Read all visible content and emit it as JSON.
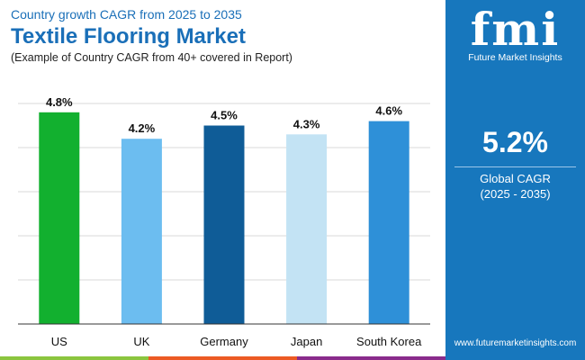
{
  "header": {
    "subtitle": "Country growth CAGR from 2025 to 2035",
    "title": "Textile Flooring Market",
    "note": "(Example of Country CAGR from 40+ covered in Report)"
  },
  "panel": {
    "logo_text": "fmi",
    "brand": "Future Market Insights",
    "cagr": "5.2%",
    "cagr_label": "Global CAGR",
    "period": "(2025 - 2035)",
    "url": "www.futuremarketinsights.com",
    "bg": "#1777bd"
  },
  "chart_data": {
    "type": "bar",
    "categories": [
      "US",
      "UK",
      "Germany",
      "Japan",
      "South Korea"
    ],
    "values": [
      4.8,
      4.2,
      4.5,
      4.3,
      4.6
    ],
    "labels": [
      "4.8%",
      "4.2%",
      "4.5%",
      "4.3%",
      "4.6%"
    ],
    "colors": [
      "#12b02f",
      "#6cbdf0",
      "#0f5c97",
      "#c3e3f4",
      "#2e90d8"
    ],
    "ylim": [
      0,
      5
    ],
    "grid": true
  }
}
